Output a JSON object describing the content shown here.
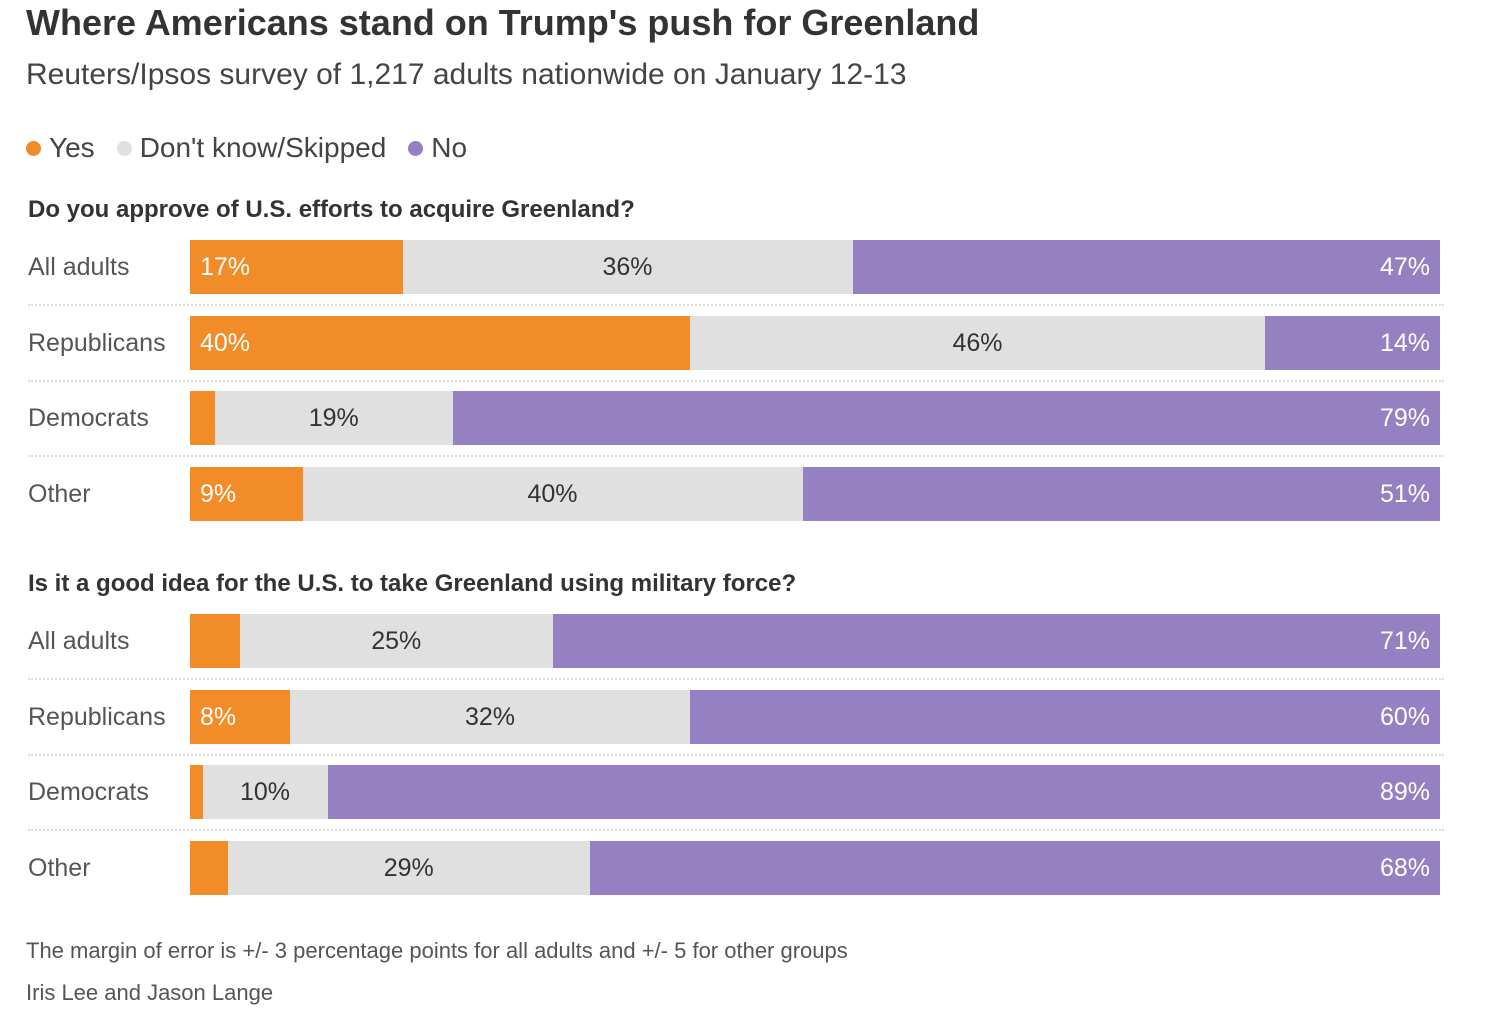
{
  "title": "Where Americans stand on Trump's push for Greenland",
  "subtitle": "Reuters/Ipsos survey of 1,217 adults nationwide on January 12-13",
  "legend": [
    {
      "label": "Yes",
      "color": "#f28c28"
    },
    {
      "label": "Don't know/Skipped",
      "color": "#e0e0e0"
    },
    {
      "label": "No",
      "color": "#9580c2"
    }
  ],
  "chart_data": [
    {
      "type": "bar",
      "stacked": true,
      "orientation": "horizontal",
      "title": "Do you approve of U.S. efforts to acquire Greenland?",
      "categories": [
        "All adults",
        "Republicans",
        "Democrats",
        "Other"
      ],
      "series": [
        {
          "name": "Yes",
          "values": [
            17,
            40,
            2,
            9
          ],
          "labels": [
            "17%",
            "40%",
            "",
            "9%"
          ]
        },
        {
          "name": "Don't know/Skipped",
          "values": [
            36,
            46,
            19,
            40
          ],
          "labels": [
            "36%",
            "46%",
            "19%",
            "40%"
          ]
        },
        {
          "name": "No",
          "values": [
            47,
            14,
            79,
            51
          ],
          "labels": [
            "47%",
            "14%",
            "79%",
            "51%"
          ]
        }
      ]
    },
    {
      "type": "bar",
      "stacked": true,
      "orientation": "horizontal",
      "title": "Is it a good idea for the U.S. to take Greenland using military force?",
      "categories": [
        "All adults",
        "Republicans",
        "Democrats",
        "Other"
      ],
      "series": [
        {
          "name": "Yes",
          "values": [
            4,
            8,
            1,
            3
          ],
          "labels": [
            "",
            "8%",
            "",
            ""
          ]
        },
        {
          "name": "Don't know/Skipped",
          "values": [
            25,
            32,
            10,
            29
          ],
          "labels": [
            "25%",
            "32%",
            "10%",
            "29%"
          ]
        },
        {
          "name": "No",
          "values": [
            71,
            60,
            89,
            68
          ],
          "labels": [
            "71%",
            "60%",
            "89%",
            "68%"
          ]
        }
      ]
    }
  ],
  "footnote": "The margin of error is +/- 3 percentage points for all adults and +/- 5 for other groups",
  "credit": "Iris Lee and Jason Lange"
}
